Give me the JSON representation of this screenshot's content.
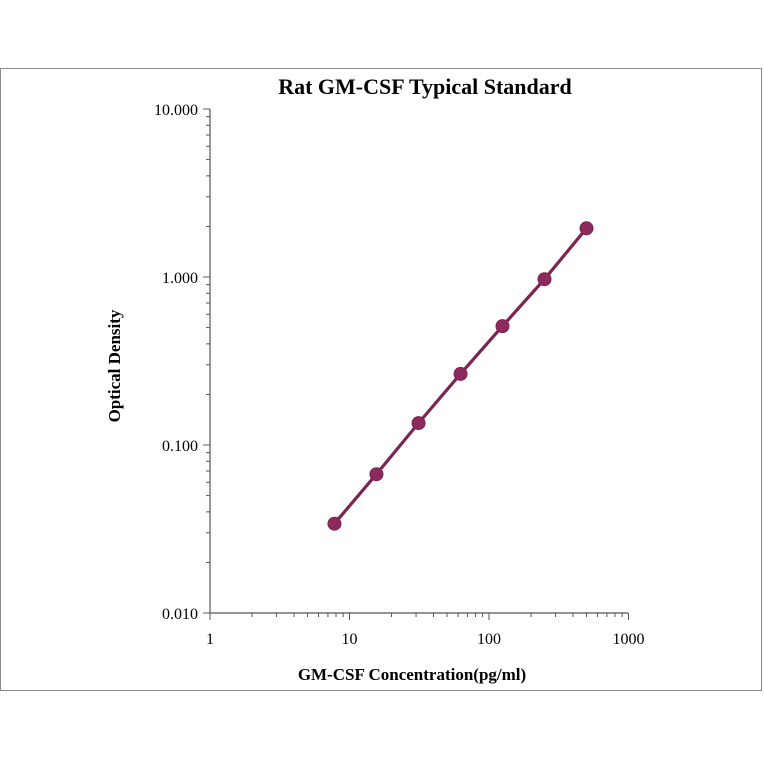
{
  "chart_data": {
    "type": "scatter",
    "title": "Rat GM-CSF Typical Standard",
    "xlabel": "GM-CSF Concentration(pg/ml)",
    "ylabel": "Optical Density",
    "xscale": "log",
    "yscale": "log",
    "xlim": [
      1,
      1000
    ],
    "ylim": [
      0.01,
      10
    ],
    "x_tick_labels": [
      "1",
      "10",
      "100",
      "1000"
    ],
    "y_tick_labels": [
      "10.000",
      "1.000",
      "0.100",
      "0.010"
    ],
    "grid": false,
    "legend": "none",
    "series": [
      {
        "x": [
          7.8,
          15.6,
          31.25,
          62.5,
          125,
          250,
          500
        ],
        "y": [
          0.034,
          0.067,
          0.135,
          0.265,
          0.51,
          0.97,
          1.95
        ],
        "line": true,
        "color": "#7a2552",
        "marker_color": "#8c2a5c"
      }
    ]
  }
}
